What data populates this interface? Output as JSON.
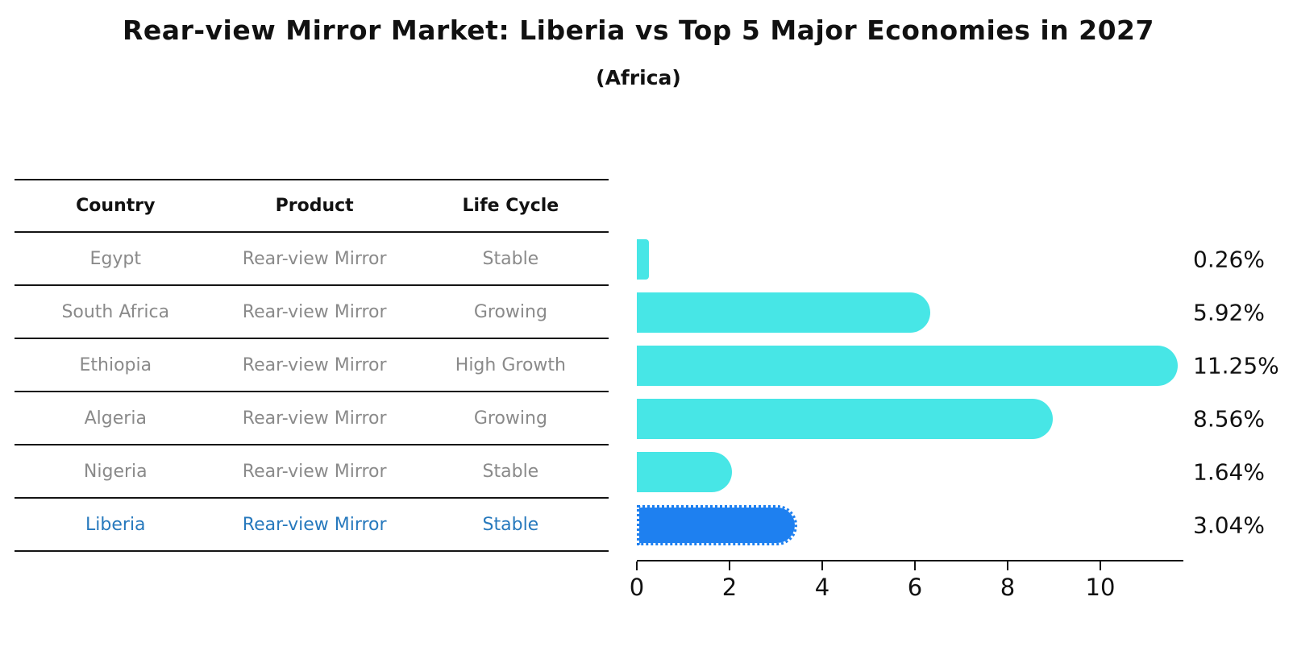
{
  "title": "Rear-view Mirror Market: Liberia vs Top 5 Major Economies in 2027",
  "subtitle": "(Africa)",
  "table": {
    "headers": [
      "Country",
      "Product",
      "Life Cycle"
    ],
    "rows": [
      {
        "country": "Egypt",
        "product": "Rear-view Mirror",
        "life_cycle": "Stable",
        "highlight": false
      },
      {
        "country": "South Africa",
        "product": "Rear-view Mirror",
        "life_cycle": "Growing",
        "highlight": false
      },
      {
        "country": "Ethiopia",
        "product": "Rear-view Mirror",
        "life_cycle": "High Growth",
        "highlight": false
      },
      {
        "country": "Algeria",
        "product": "Rear-view Mirror",
        "life_cycle": "Growing",
        "highlight": false
      },
      {
        "country": "Nigeria",
        "product": "Rear-view Mirror",
        "life_cycle": "Stable",
        "highlight": false
      },
      {
        "country": "Liberia",
        "product": "Rear-view Mirror",
        "life_cycle": "Stable",
        "highlight": true
      }
    ]
  },
  "chart_data": {
    "type": "bar",
    "orientation": "horizontal",
    "title": "Rear-view Mirror Market: Liberia vs Top 5 Major Economies in 2027",
    "subtitle": "(Africa)",
    "categories": [
      "Egypt",
      "South Africa",
      "Ethiopia",
      "Algeria",
      "Nigeria",
      "Liberia"
    ],
    "values": [
      0.26,
      5.92,
      11.25,
      8.56,
      1.64,
      3.04
    ],
    "value_labels": [
      "0.26%",
      "5.92%",
      "11.25%",
      "8.56%",
      "1.64%",
      "3.04%"
    ],
    "xticks": [
      0,
      2,
      4,
      6,
      8,
      10
    ],
    "xlim": [
      0,
      11.8
    ],
    "grid": false,
    "legend": false,
    "highlight_category": "Liberia",
    "bar_color": "#47e6e6",
    "highlight_bar_color": "#1e80f0",
    "highlight_text_color": "#2779bd",
    "row_text_color": "#8a8a8a",
    "axis_color": "#141414"
  }
}
